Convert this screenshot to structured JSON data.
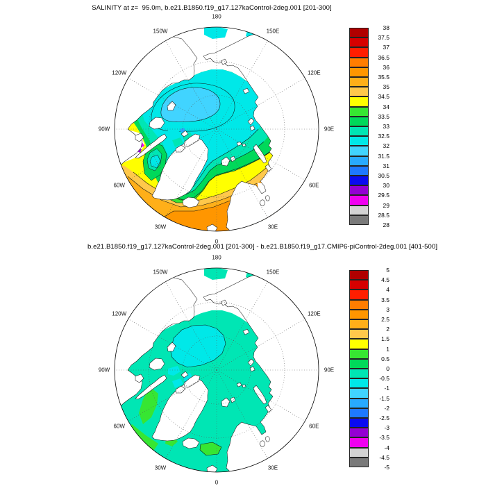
{
  "page": {
    "background": "#FFFFFF"
  },
  "palette": [
    "#B00000",
    "#D60000",
    "#FF1E00",
    "#FF7D00",
    "#FF9600",
    "#FFAF19",
    "#FFC84B",
    "#FFFF00",
    "#37E632",
    "#00D95A",
    "#00E6B4",
    "#00E8E8",
    "#41D4FF",
    "#28AAFF",
    "#1E78FF",
    "#0A0AF0",
    "#9400D3",
    "#F000F0",
    "#D3D3D3",
    "#7A7A7A"
  ],
  "top_chart": {
    "title": "SALINITY at z=  95.0m, b.e21.B1850.f19_g17.127kaControl-2deg.001 [201-300]",
    "meridians": [
      "180",
      "150E",
      "120E",
      "90E",
      "60E",
      "30E",
      "0",
      "30W",
      "60W",
      "90W",
      "120W",
      "150W"
    ],
    "colorbar_labels": [
      "38",
      "37.5",
      "37",
      "36.5",
      "36",
      "35.5",
      "35",
      "34.5",
      "34",
      "33.5",
      "33",
      "32.5",
      "32",
      "31.5",
      "31",
      "30.5",
      "30",
      "29.5",
      "29",
      "28.5",
      "28"
    ]
  },
  "bottom_chart": {
    "title": "b.e21.B1850.f19_g17.127kaControl-2deg.001 [201-300] - b.e21.B1850.f19_g17.CMIP6-piControl-2deg.001 [401-500]",
    "meridians": [
      "180",
      "150E",
      "120E",
      "90E",
      "60E",
      "30E",
      "0",
      "30W",
      "60W",
      "90W",
      "120W",
      "150W"
    ],
    "colorbar_labels": [
      "5",
      "4.5",
      "4",
      "3.5",
      "3",
      "2.5",
      "2",
      "1.5",
      "1",
      "0.5",
      "0",
      "-0.5",
      "-1",
      "-1.5",
      "-2",
      "-2.5",
      "-3",
      "-3.5",
      "-4",
      "-4.5",
      "-5"
    ]
  },
  "chart_data": [
    {
      "type": "filled_contour_map",
      "title": "SALINITY at z=  95.0m, b.e21.B1850.f19_g17.127kaControl-2deg.001 [201-300]",
      "projection": "north_polar_stereographic",
      "meridian_labels": [
        "180",
        "150E",
        "120E",
        "90E",
        "60E",
        "30E",
        "0",
        "30W",
        "60W",
        "90W",
        "120W",
        "150W"
      ],
      "levels": {
        "min": 28,
        "max": 38,
        "step": 0.5
      },
      "legend_position": "right",
      "grid": "dotted graticule, latitude circles and 30-degree meridians",
      "visible_features": [
        "central Arctic basin filled 31.5-32.5 (cyan) with closed contours over the Beaufort sector",
        "green bands 33-34 along the Siberian shelf, Fram Strait and East Greenland coast",
        "yellow 34-34.5 over Barents and Kara Seas",
        "orange 34.5-36 over Norwegian Sea and North Atlantic",
        "Baffin Bay ringed green with 32-32.5 cyan core",
        "low-salinity patches 28-30 (gray, magenta, purple, blue) in Hudson Bay / Foxe Basin",
        "shallow shelves and land masked white"
      ]
    },
    {
      "type": "filled_contour_map",
      "title": "b.e21.B1850.f19_g17.127kaControl-2deg.001 [201-300] - b.e21.B1850.f19_g17.CMIP6-piControl-2deg.001 [401-500]",
      "projection": "north_polar_stereographic",
      "meridian_labels": [
        "180",
        "150E",
        "120E",
        "90E",
        "60E",
        "30E",
        "0",
        "30W",
        "60W",
        "90W",
        "120W",
        "150W"
      ],
      "levels": {
        "min": -5,
        "max": 5,
        "step": 0.5
      },
      "legend_position": "right",
      "grid": "dotted graticule, latitude circles and 30-degree meridians",
      "visible_features": [
        "ocean mostly -0.5 to 0 (turquoise)",
        "closed -0.5 to -1 (cyan) anomaly over the central Arctic / Beaufort sector",
        "positive 0.5-1 (green) patches in Baffin Bay, Labrador Sea, south of Iceland and along Norway",
        "cyan channels within the Canadian Archipelago",
        "land and shallow shelves masked white"
      ]
    }
  ]
}
